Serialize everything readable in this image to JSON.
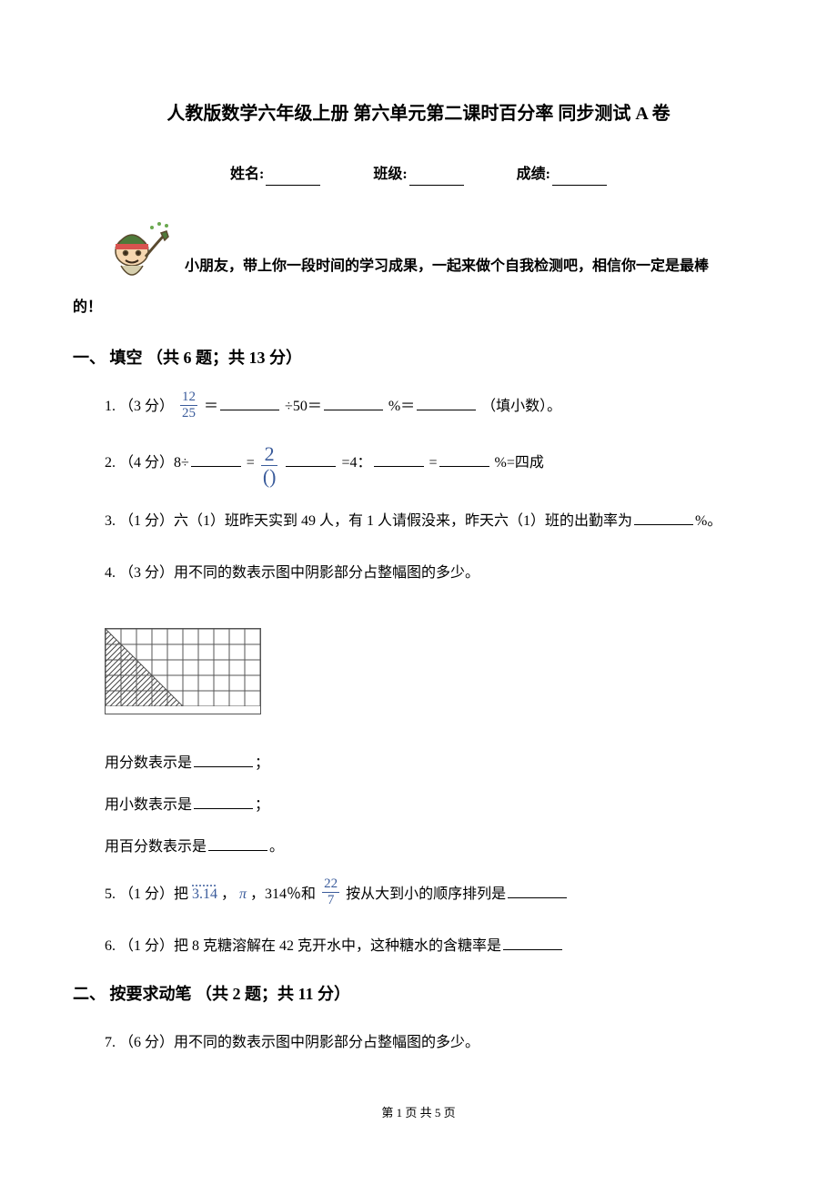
{
  "title": "人教版数学六年级上册 第六单元第二课时百分率 同步测试 A 卷",
  "info": {
    "name_label": "姓名:",
    "class_label": "班级:",
    "score_label": "成绩:"
  },
  "encourage_line1": "小朋友，带上你一段时间的学习成果，一起来做个自我检测吧，相信你一定是最棒",
  "encourage_line2": "的！",
  "section1": {
    "heading": "一、 填空 （共 6 题；共 13 分）",
    "q1": {
      "pre": "1. （3 分）",
      "frac_num": "12",
      "frac_den": "25",
      "mid1": " ＝",
      "mid2": "÷50＝",
      "mid3": "%＝",
      "tail": " （填小数）。"
    },
    "q2": {
      "pre": "2. （4 分）8÷",
      "eq1": "=",
      "frac_num": "2",
      "frac_den": "()",
      "eq2": "=4：",
      "eq3": "=",
      "tail": "%=四成"
    },
    "q3": {
      "pre": "3. （1 分）六（1）班昨天实到 49 人，有 1 人请假没来，昨天六（1）班的出勤率为",
      "tail": "%。"
    },
    "q4": {
      "text": "4. （3 分）用不同的数表示图中阴影部分占整幅图的多少。",
      "l1": "用分数表示是",
      "l2": "用小数表示是",
      "l3": "用百分数表示是",
      "semi": "；",
      "period": "。"
    },
    "q5": {
      "pre": "5. （1 分）把 ",
      "v1": "3.14",
      "sep1": " ， ",
      "v2": "π",
      "sep2": " ，314％和 ",
      "frac_num": "22",
      "frac_den": "7",
      "mid": " 按从大到小的顺序排列是"
    },
    "q6": {
      "pre": "6. （1 分）把 8 克糖溶解在 42 克开水中，这种糖水的含糖率是"
    }
  },
  "section2": {
    "heading": "二、 按要求动笔 （共 2 题；共 11 分）",
    "q7": "7. （6 分）用不同的数表示图中阴影部分占整幅图的多少。"
  },
  "footer": "第 1 页 共 5 页",
  "figure": {
    "cols": 10,
    "rows": 5,
    "cell": 17,
    "stroke": "#555555",
    "hatch": "#444444"
  },
  "kid_colors": {
    "skin": "#f6d7b0",
    "hat": "#4e7a3a",
    "hat_band": "#d9534f",
    "shirt": "#d6cfae",
    "outline": "#5a4a2f"
  }
}
